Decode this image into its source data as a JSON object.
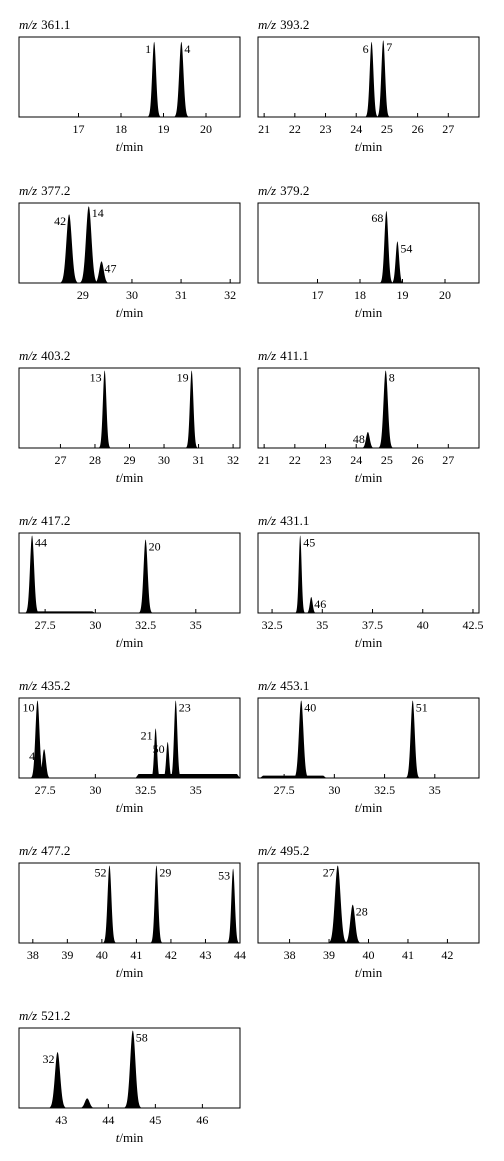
{
  "colors": {
    "ink": "#000000",
    "background": "#ffffff"
  },
  "chart_data": [
    {
      "type": "line",
      "title_mz": "m/z",
      "title_value": "361.1",
      "xlabel_t": "t",
      "xlabel_unit": "/min",
      "xlim": [
        15.6,
        20.8
      ],
      "ticks": [
        17,
        18,
        19,
        20
      ],
      "tick_labels": [
        "17",
        "18",
        "19",
        "20"
      ],
      "peaks": [
        {
          "x": 18.78,
          "h": 0.94,
          "w": 0.045,
          "label": "1"
        },
        {
          "x": 19.42,
          "h": 0.94,
          "w": 0.05,
          "label": "4"
        }
      ],
      "humps": []
    },
    {
      "type": "line",
      "title_mz": "m/z",
      "title_value": "393.2",
      "xlabel_t": "t",
      "xlabel_unit": "/min",
      "xlim": [
        20.8,
        28.0
      ],
      "ticks": [
        21,
        22,
        23,
        24,
        25,
        26,
        27
      ],
      "tick_labels": [
        "21",
        "22",
        "23",
        "24",
        "25",
        "26",
        "27"
      ],
      "peaks": [
        {
          "x": 24.5,
          "h": 0.94,
          "w": 0.06,
          "label": "6"
        },
        {
          "x": 24.88,
          "h": 0.96,
          "w": 0.06,
          "label": "7"
        }
      ],
      "humps": []
    },
    {
      "type": "line",
      "title_mz": "m/z",
      "title_value": "377.2",
      "xlabel_t": "t",
      "xlabel_unit": "/min",
      "xlim": [
        27.7,
        32.2
      ],
      "ticks": [
        29,
        30,
        31,
        32
      ],
      "tick_labels": [
        "29",
        "30",
        "31",
        "32"
      ],
      "peaks": [
        {
          "x": 28.72,
          "h": 0.86,
          "w": 0.055,
          "label": "42"
        },
        {
          "x": 29.12,
          "h": 0.96,
          "w": 0.055,
          "label": "14"
        },
        {
          "x": 29.38,
          "h": 0.27,
          "w": 0.045,
          "label": "47"
        }
      ],
      "humps": []
    },
    {
      "type": "line",
      "title_mz": "m/z",
      "title_value": "379.2",
      "xlabel_t": "t",
      "xlabel_unit": "/min",
      "xlim": [
        15.6,
        20.8
      ],
      "ticks": [
        17,
        18,
        19,
        20
      ],
      "tick_labels": [
        "17",
        "18",
        "19",
        "20"
      ],
      "peaks": [
        {
          "x": 18.62,
          "h": 0.9,
          "w": 0.045,
          "label": "68"
        },
        {
          "x": 18.88,
          "h": 0.52,
          "w": 0.04,
          "label": "54"
        }
      ],
      "humps": []
    },
    {
      "type": "line",
      "title_mz": "m/z",
      "title_value": "403.2",
      "xlabel_t": "t",
      "xlabel_unit": "/min",
      "xlim": [
        25.8,
        32.2
      ],
      "ticks": [
        27,
        28,
        29,
        30,
        31,
        32
      ],
      "tick_labels": [
        "27",
        "28",
        "29",
        "30",
        "31",
        "32"
      ],
      "peaks": [
        {
          "x": 28.28,
          "h": 0.97,
          "w": 0.05,
          "label": "13"
        },
        {
          "x": 30.8,
          "h": 0.97,
          "w": 0.05,
          "label": "19"
        }
      ],
      "humps": []
    },
    {
      "type": "line",
      "title_mz": "m/z",
      "title_value": "411.1",
      "xlabel_t": "t",
      "xlabel_unit": "/min",
      "xlim": [
        20.8,
        28.0
      ],
      "ticks": [
        21,
        22,
        23,
        24,
        25,
        26,
        27
      ],
      "tick_labels": [
        "21",
        "22",
        "23",
        "24",
        "25",
        "26",
        "27"
      ],
      "peaks": [
        {
          "x": 24.38,
          "h": 0.2,
          "w": 0.06,
          "label": "48"
        },
        {
          "x": 24.96,
          "h": 0.97,
          "w": 0.07,
          "label": "8"
        }
      ],
      "humps": []
    },
    {
      "type": "line",
      "title_mz": "m/z",
      "title_value": "417.2",
      "xlabel_t": "t",
      "xlabel_unit": "/min",
      "xlim": [
        26.2,
        37.2
      ],
      "ticks": [
        27.5,
        30,
        32.5,
        35
      ],
      "tick_labels": [
        "27.5",
        "30",
        "32.5",
        "35"
      ],
      "peaks": [
        {
          "x": 26.85,
          "h": 0.97,
          "w": 0.1,
          "label": "44"
        },
        {
          "x": 32.5,
          "h": 0.92,
          "w": 0.1,
          "label": "20"
        }
      ],
      "humps": [
        {
          "x1": 26.9,
          "x2": 30.0,
          "h": 0.02
        }
      ]
    },
    {
      "type": "line",
      "title_mz": "m/z",
      "title_value": "431.1",
      "xlabel_t": "t",
      "xlabel_unit": "/min",
      "xlim": [
        31.8,
        42.8
      ],
      "ticks": [
        32.5,
        35,
        37.5,
        40,
        42.5
      ],
      "tick_labels": [
        "32.5",
        "35",
        "37.5",
        "40",
        "42.5"
      ],
      "peaks": [
        {
          "x": 33.9,
          "h": 0.97,
          "w": 0.07,
          "label": "45"
        },
        {
          "x": 34.45,
          "h": 0.2,
          "w": 0.07,
          "label": "46"
        }
      ],
      "humps": []
    },
    {
      "type": "line",
      "title_mz": "m/z",
      "title_value": "435.2",
      "xlabel_t": "t",
      "xlabel_unit": "/min",
      "xlim": [
        26.2,
        37.2
      ],
      "ticks": [
        27.5,
        30,
        32.5,
        35
      ],
      "tick_labels": [
        "27.5",
        "30",
        "32.5",
        "35"
      ],
      "peaks": [
        {
          "x": 27.12,
          "h": 0.97,
          "w": 0.1,
          "label": "10"
        },
        {
          "x": 27.45,
          "h": 0.36,
          "w": 0.09,
          "label": "49"
        },
        {
          "x": 33.0,
          "h": 0.62,
          "w": 0.07,
          "label": "21"
        },
        {
          "x": 33.6,
          "h": 0.45,
          "w": 0.07,
          "label": "50"
        },
        {
          "x": 34.0,
          "h": 0.97,
          "w": 0.08,
          "label": "23"
        }
      ],
      "humps": [
        {
          "x1": 32.0,
          "x2": 37.2,
          "h": 0.05
        }
      ]
    },
    {
      "type": "line",
      "title_mz": "m/z",
      "title_value": "453.1",
      "xlabel_t": "t",
      "xlabel_unit": "/min",
      "xlim": [
        26.2,
        37.2
      ],
      "ticks": [
        27.5,
        30,
        32.5,
        35
      ],
      "tick_labels": [
        "27.5",
        "30",
        "32.5",
        "35"
      ],
      "peaks": [
        {
          "x": 28.35,
          "h": 0.97,
          "w": 0.11,
          "label": "40"
        },
        {
          "x": 33.9,
          "h": 0.97,
          "w": 0.1,
          "label": "51"
        }
      ],
      "humps": [
        {
          "x1": 26.3,
          "x2": 29.6,
          "h": 0.03
        }
      ]
    },
    {
      "type": "line",
      "title_mz": "m/z",
      "title_value": "477.2",
      "xlabel_t": "t",
      "xlabel_unit": "/min",
      "xlim": [
        37.6,
        44.0
      ],
      "ticks": [
        38,
        39,
        40,
        41,
        42,
        43,
        44
      ],
      "tick_labels": [
        "38",
        "39",
        "40",
        "41",
        "42",
        "43",
        "44"
      ],
      "peaks": [
        {
          "x": 40.22,
          "h": 0.97,
          "w": 0.055,
          "label": "52"
        },
        {
          "x": 41.58,
          "h": 0.97,
          "w": 0.05,
          "label": "29"
        },
        {
          "x": 43.8,
          "h": 0.93,
          "w": 0.05,
          "label": "53"
        }
      ],
      "humps": []
    },
    {
      "type": "line",
      "title_mz": "m/z",
      "title_value": "495.2",
      "xlabel_t": "t",
      "xlabel_unit": "/min",
      "xlim": [
        37.2,
        42.8
      ],
      "ticks": [
        38,
        39,
        40,
        41,
        42
      ],
      "tick_labels": [
        "38",
        "39",
        "40",
        "41",
        "42"
      ],
      "peaks": [
        {
          "x": 39.22,
          "h": 0.97,
          "w": 0.07,
          "label": "27"
        },
        {
          "x": 39.6,
          "h": 0.48,
          "w": 0.06,
          "label": "28"
        }
      ],
      "humps": []
    },
    {
      "type": "line",
      "title_mz": "m/z",
      "title_value": "521.2",
      "xlabel_t": "t",
      "xlabel_unit": "/min",
      "xlim": [
        42.1,
        46.8
      ],
      "ticks": [
        43,
        44,
        45,
        46
      ],
      "tick_labels": [
        "43",
        "44",
        "45",
        "46"
      ],
      "peaks": [
        {
          "x": 42.92,
          "h": 0.7,
          "w": 0.055,
          "label": "32"
        },
        {
          "x": 43.55,
          "h": 0.12,
          "w": 0.05,
          "label": ""
        },
        {
          "x": 44.52,
          "h": 0.97,
          "w": 0.055,
          "label": "58"
        }
      ],
      "humps": []
    }
  ]
}
